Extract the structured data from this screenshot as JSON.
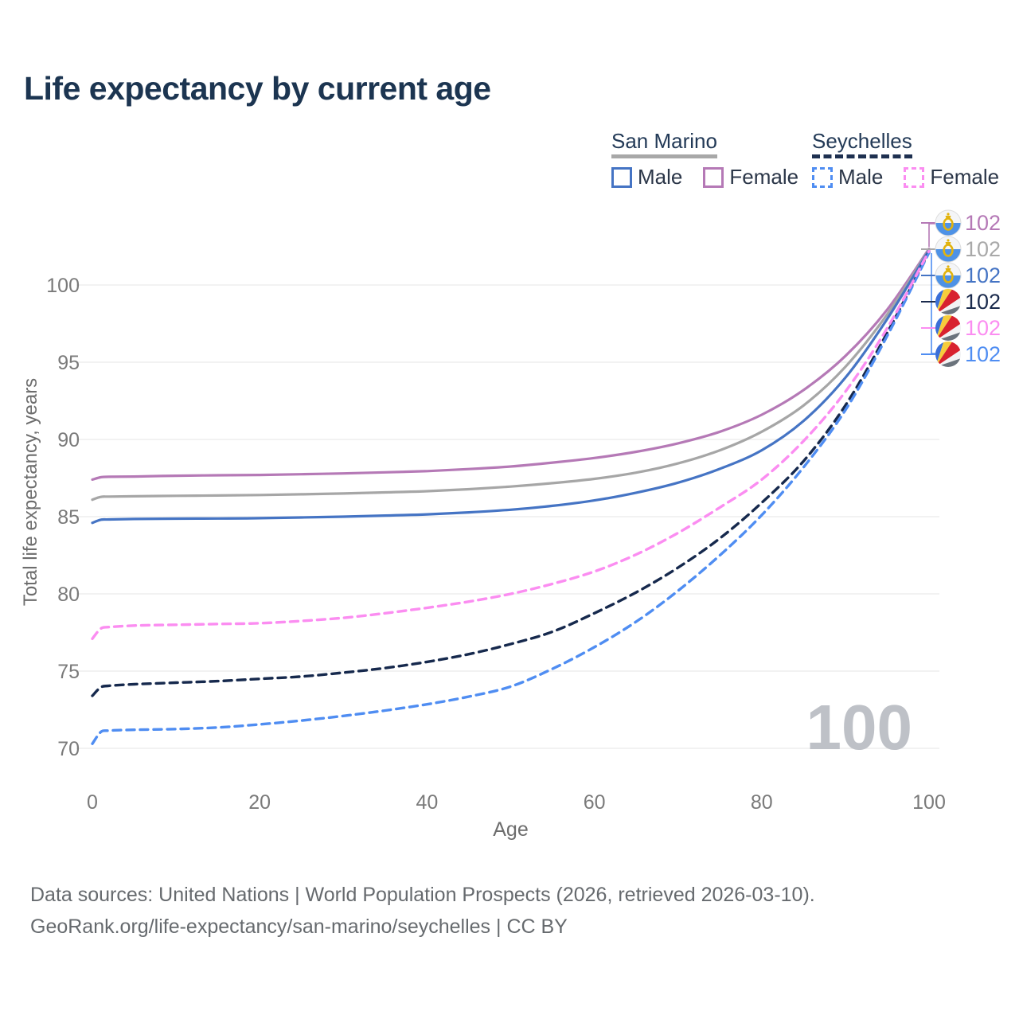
{
  "title": "Life expectancy by current age",
  "legend": {
    "groups": [
      {
        "name": "San Marino",
        "line_style": "solid",
        "underline_color": "#a8a8a8",
        "items": [
          {
            "label": "Male",
            "color": "#4574c4",
            "dash": false
          },
          {
            "label": "Female",
            "color": "#b579b6",
            "dash": false
          }
        ]
      },
      {
        "name": "Seychelles",
        "line_style": "dashed",
        "underline_color": "#1e3050",
        "items": [
          {
            "label": "Male",
            "color": "#4f8df2",
            "dash": true
          },
          {
            "label": "Female",
            "color": "#fb8df1",
            "dash": true
          }
        ]
      }
    ]
  },
  "footer": {
    "line1": "Data sources: United Nations | World Population Prospects (2026, retrieved 2026-03-10).",
    "line2": "GeoRank.org/life-expectancy/san-marino/seychelles | CC BY"
  },
  "chart_data": {
    "type": "line",
    "title": "Life expectancy by current age",
    "xlabel": "Age",
    "ylabel": "Total life expectancy, years",
    "xticks": [
      0,
      20,
      40,
      60,
      80,
      100
    ],
    "yticks": [
      70,
      75,
      80,
      85,
      90,
      95,
      100
    ],
    "xlim": [
      0,
      100
    ],
    "ylim": [
      68.5,
      103.5
    ],
    "grid": "horizontal",
    "legend_position": "top-right",
    "watermark": "100",
    "ages": [
      0,
      1,
      2,
      5,
      10,
      15,
      20,
      25,
      30,
      35,
      40,
      45,
      50,
      55,
      60,
      65,
      70,
      75,
      80,
      85,
      90,
      95,
      100
    ],
    "series": [
      {
        "name": "San Marino Female",
        "country": "San Marino",
        "sex": "Female",
        "color": "#b579b6",
        "dash": false,
        "values": [
          87.4,
          87.55,
          87.58,
          87.6,
          87.65,
          87.68,
          87.7,
          87.75,
          87.8,
          87.87,
          87.95,
          88.08,
          88.25,
          88.5,
          88.8,
          89.2,
          89.75,
          90.5,
          91.6,
          93.2,
          95.4,
          98.4,
          102.35
        ]
      },
      {
        "name": "San Marino All",
        "country": "San Marino",
        "sex": "All",
        "color": "#a6a6a6",
        "dash": false,
        "values": [
          86.1,
          86.28,
          86.3,
          86.32,
          86.35,
          86.37,
          86.4,
          86.45,
          86.5,
          86.57,
          86.65,
          86.78,
          86.95,
          87.17,
          87.45,
          87.85,
          88.45,
          89.3,
          90.5,
          92.2,
          94.7,
          98.1,
          102.3
        ]
      },
      {
        "name": "San Marino Male",
        "country": "San Marino",
        "sex": "Male",
        "color": "#4574c4",
        "dash": false,
        "values": [
          84.6,
          84.8,
          84.82,
          84.85,
          84.87,
          84.88,
          84.9,
          84.95,
          85.0,
          85.07,
          85.15,
          85.28,
          85.45,
          85.7,
          86.05,
          86.55,
          87.2,
          88.1,
          89.3,
          91.2,
          94.0,
          97.8,
          102.25
        ]
      },
      {
        "name": "Seychelles All",
        "country": "Seychelles",
        "sex": "All",
        "color": "#16294d",
        "dash": true,
        "values": [
          73.4,
          73.95,
          74.05,
          74.15,
          74.25,
          74.35,
          74.5,
          74.65,
          74.9,
          75.2,
          75.6,
          76.1,
          76.75,
          77.55,
          78.75,
          80.1,
          81.7,
          83.6,
          85.9,
          88.6,
          92.2,
          96.9,
          102.15
        ]
      },
      {
        "name": "Seychelles Male",
        "country": "Seychelles",
        "sex": "Male",
        "color": "#4f8df2",
        "dash": true,
        "values": [
          70.3,
          71.05,
          71.15,
          71.2,
          71.25,
          71.35,
          71.55,
          71.8,
          72.1,
          72.45,
          72.85,
          73.35,
          74.0,
          75.15,
          76.55,
          78.2,
          80.2,
          82.5,
          85.1,
          88.2,
          91.9,
          96.7,
          102.1
        ]
      },
      {
        "name": "Seychelles Female",
        "country": "Seychelles",
        "sex": "Female",
        "color": "#fb8df1",
        "dash": true,
        "values": [
          77.1,
          77.75,
          77.85,
          77.95,
          78.0,
          78.05,
          78.1,
          78.25,
          78.45,
          78.75,
          79.1,
          79.5,
          80.0,
          80.65,
          81.45,
          82.55,
          83.95,
          85.6,
          87.4,
          89.9,
          93.1,
          97.2,
          102.2
        ]
      }
    ],
    "end_labels": [
      {
        "flag": "san-marino",
        "series": "San Marino Female",
        "value": "102",
        "color": "#b579b6"
      },
      {
        "flag": "san-marino",
        "series": "San Marino All",
        "value": "102",
        "color": "#a9a9a9"
      },
      {
        "flag": "san-marino",
        "series": "San Marino Male",
        "value": "102",
        "color": "#4574c4"
      },
      {
        "flag": "seychelles",
        "series": "Seychelles All",
        "value": "102",
        "color": "#1b2b4d"
      },
      {
        "flag": "seychelles",
        "series": "Seychelles Female",
        "value": "102",
        "color": "#fb8df1"
      },
      {
        "flag": "seychelles",
        "series": "Seychelles Male",
        "value": "102",
        "color": "#4f8df2"
      }
    ]
  }
}
